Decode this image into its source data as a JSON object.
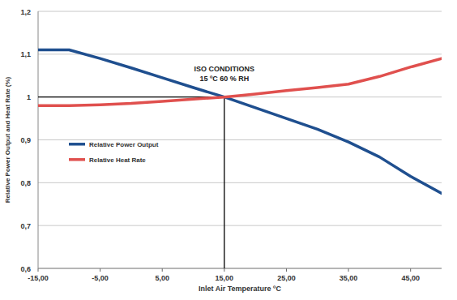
{
  "chart_data": {
    "type": "line",
    "x_label": "Inlet Air Temperature ºC",
    "y_label": "Relative Power Output and Heat Rate (%)",
    "annotations": [
      "ISO CONDITIONS",
      "15 ºC 60 % RH"
    ],
    "reference_point": {
      "x": 15,
      "y": 1
    },
    "x": [
      -15,
      -10,
      -5,
      0,
      5,
      10,
      15,
      20,
      25,
      30,
      35,
      40,
      45,
      50
    ],
    "series": [
      {
        "name": "Relative Power Output",
        "color": "#1f4f8f",
        "values": [
          1.11,
          1.11,
          1.09,
          1.068,
          1.045,
          1.022,
          1.0,
          0.975,
          0.95,
          0.925,
          0.895,
          0.86,
          0.815,
          0.775
        ]
      },
      {
        "name": "Relative Heat Rate",
        "color": "#e0504e",
        "values": [
          0.98,
          0.98,
          0.982,
          0.985,
          0.99,
          0.995,
          1.0,
          1.007,
          1.015,
          1.022,
          1.03,
          1.048,
          1.07,
          1.09
        ]
      }
    ],
    "xlim": [
      -15,
      50
    ],
    "xticks": [
      {
        "value": -15,
        "label": "-15,00"
      },
      {
        "value": -5,
        "label": "-5,00"
      },
      {
        "value": 5,
        "label": "5,00"
      },
      {
        "value": 15,
        "label": "15,00"
      },
      {
        "value": 25,
        "label": "25,00"
      },
      {
        "value": 35,
        "label": "35,00"
      },
      {
        "value": 45,
        "label": "45,00"
      }
    ],
    "ylim": [
      0.6,
      1.2
    ],
    "yticks": [
      {
        "value": 0.6,
        "label": "0,6"
      },
      {
        "value": 0.7,
        "label": "0,7"
      },
      {
        "value": 0.8,
        "label": "0,8"
      },
      {
        "value": 0.9,
        "label": "0,9"
      },
      1,
      {
        "value": 1.1,
        "label": "1,1"
      },
      {
        "value": 1.2,
        "label": "1,2"
      }
    ],
    "grid": true,
    "legend": "left"
  }
}
